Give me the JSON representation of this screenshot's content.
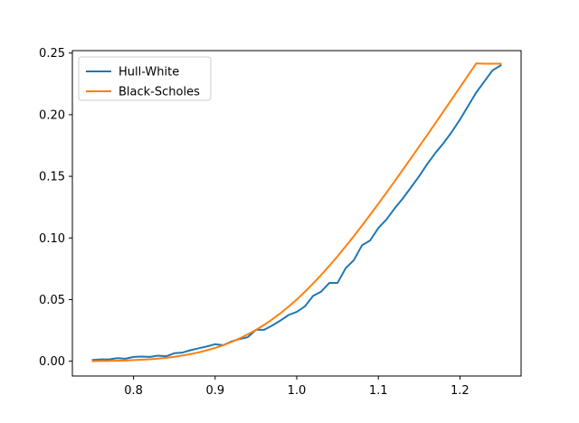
{
  "chart_data": {
    "type": "line",
    "title": "",
    "xlabel": "",
    "ylabel": "",
    "xlim": [
      0.725,
      1.275
    ],
    "ylim": [
      -0.012,
      0.252
    ],
    "xticks": [
      0.8,
      0.9,
      1.0,
      1.1,
      1.2
    ],
    "xtick_labels": [
      "0.8",
      "0.9",
      "1.0",
      "1.1",
      "1.2"
    ],
    "yticks": [
      0.0,
      0.05,
      0.1,
      0.15,
      0.2,
      0.25
    ],
    "ytick_labels": [
      "0.00",
      "0.05",
      "0.10",
      "0.15",
      "0.20",
      "0.25"
    ],
    "grid": false,
    "legend_position": "top-left",
    "series": [
      {
        "name": "Hull-White",
        "color": "#1f77b4",
        "x": [
          0.75,
          0.76,
          0.77,
          0.78,
          0.79,
          0.8,
          0.81,
          0.82,
          0.83,
          0.84,
          0.85,
          0.86,
          0.87,
          0.88,
          0.89,
          0.9,
          0.91,
          0.92,
          0.93,
          0.94,
          0.95,
          0.96,
          0.97,
          0.98,
          0.99,
          1.0,
          1.01,
          1.02,
          1.03,
          1.04,
          1.05,
          1.06,
          1.07,
          1.08,
          1.09,
          1.1,
          1.11,
          1.12,
          1.13,
          1.14,
          1.15,
          1.16,
          1.17,
          1.18,
          1.19,
          1.2,
          1.21,
          1.22,
          1.23,
          1.24,
          1.25
        ],
        "y": [
          0.001,
          0.0015,
          0.0015,
          0.0025,
          0.002,
          0.0035,
          0.0038,
          0.0035,
          0.0045,
          0.004,
          0.0065,
          0.007,
          0.009,
          0.0105,
          0.012,
          0.0138,
          0.013,
          0.016,
          0.018,
          0.0195,
          0.0255,
          0.0255,
          0.029,
          0.033,
          0.0375,
          0.04,
          0.0445,
          0.053,
          0.0565,
          0.0635,
          0.0635,
          0.0755,
          0.082,
          0.094,
          0.098,
          0.108,
          0.115,
          0.124,
          0.132,
          0.141,
          0.15,
          0.16,
          0.169,
          0.177,
          0.186,
          0.196,
          0.207,
          0.218,
          0.227,
          0.236,
          0.24
        ]
      },
      {
        "name": "Black-Scholes",
        "color": "#ff7f0e",
        "x": [
          0.75,
          0.76,
          0.77,
          0.78,
          0.79,
          0.8,
          0.81,
          0.82,
          0.83,
          0.84,
          0.85,
          0.86,
          0.87,
          0.88,
          0.89,
          0.9,
          0.91,
          0.92,
          0.93,
          0.94,
          0.95,
          0.96,
          0.97,
          0.98,
          0.99,
          1.0,
          1.01,
          1.02,
          1.03,
          1.04,
          1.05,
          1.06,
          1.07,
          1.08,
          1.09,
          1.1,
          1.11,
          1.12,
          1.13,
          1.14,
          1.15,
          1.16,
          1.17,
          1.18,
          1.19,
          1.2,
          1.21,
          1.22,
          1.23,
          1.24,
          1.25
        ],
        "y": [
          0.0001,
          0.0002,
          0.0003,
          0.0004,
          0.0006,
          0.0009,
          0.0012,
          0.0016,
          0.0021,
          0.0028,
          0.0036,
          0.0046,
          0.0058,
          0.0072,
          0.0089,
          0.0108,
          0.013,
          0.0156,
          0.0185,
          0.0218,
          0.0254,
          0.0295,
          0.034,
          0.0389,
          0.0443,
          0.0501,
          0.0563,
          0.063,
          0.07,
          0.0774,
          0.0851,
          0.0932,
          0.1015,
          0.1101,
          0.1188,
          0.1277,
          0.1368,
          0.146,
          0.1553,
          0.1647,
          0.1741,
          0.1836,
          0.1932,
          0.2028,
          0.2125,
          0.2222,
          0.2319,
          0.2416,
          0.2414,
          0.2414,
          0.2414
        ]
      }
    ]
  }
}
